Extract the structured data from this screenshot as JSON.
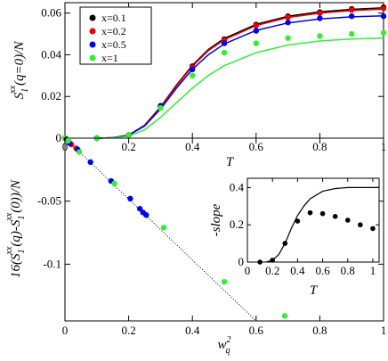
{
  "chart_data": [
    {
      "type": "line",
      "xlabel": "T",
      "ylabel": "S_1^{xx}(q=0)/N",
      "xlim": [
        0,
        1
      ],
      "ylim": [
        0,
        0.065
      ],
      "xticks": [
        "0",
        "0.2",
        "0.4",
        "0.6",
        "0.8",
        "1"
      ],
      "yticks": [
        "0",
        "0.02",
        "0.04",
        "0.06"
      ],
      "legend": {
        "placement": "top-left",
        "entries": [
          "x=0.1",
          "x=0.2",
          "x=0.5",
          "x=1"
        ]
      },
      "series": [
        {
          "name": "x=0.1",
          "color": "#000000",
          "points": {
            "x": [
              0.0,
              0.1,
              0.2,
              0.3,
              0.4,
              0.5,
              0.6,
              0.7,
              0.8,
              0.9,
              1.0
            ],
            "y": [
              0.0,
              0.0,
              0.0015,
              0.0155,
              0.0345,
              0.0475,
              0.0545,
              0.0585,
              0.0605,
              0.062,
              0.0628
            ]
          },
          "curve": {
            "x": [
              0.1,
              0.15,
              0.2,
              0.25,
              0.3,
              0.35,
              0.4,
              0.45,
              0.5,
              0.6,
              0.7,
              0.8,
              0.9,
              1.0
            ],
            "y": [
              0.0,
              0.0002,
              0.0015,
              0.0062,
              0.015,
              0.0255,
              0.035,
              0.0425,
              0.0478,
              0.0546,
              0.0585,
              0.0606,
              0.0618,
              0.0625
            ]
          }
        },
        {
          "name": "x=0.2",
          "color": "#ee0000",
          "points": {
            "x": [
              0.0,
              0.1,
              0.2,
              0.3,
              0.4,
              0.5,
              0.6,
              0.7,
              0.8,
              0.9,
              1.0
            ],
            "y": [
              0.0,
              0.0,
              0.0015,
              0.015,
              0.034,
              0.047,
              0.054,
              0.058,
              0.06,
              0.0615,
              0.0622
            ]
          },
          "curve": {
            "x": [
              0.1,
              0.15,
              0.2,
              0.25,
              0.3,
              0.35,
              0.4,
              0.45,
              0.5,
              0.6,
              0.7,
              0.8,
              0.9,
              1.0
            ],
            "y": [
              0.0,
              0.0002,
              0.0015,
              0.006,
              0.0146,
              0.025,
              0.0345,
              0.042,
              0.0472,
              0.054,
              0.0579,
              0.06,
              0.0612,
              0.0619
            ]
          }
        },
        {
          "name": "x=0.5",
          "color": "#0000ee",
          "points": {
            "x": [
              0.0,
              0.1,
              0.2,
              0.3,
              0.4,
              0.5,
              0.6,
              0.7,
              0.8,
              0.9,
              1.0
            ],
            "y": [
              0.0,
              0.0,
              0.0015,
              0.015,
              0.033,
              0.0455,
              0.0515,
              0.0555,
              0.0575,
              0.0585,
              0.0585
            ]
          },
          "curve": {
            "x": [
              0.1,
              0.15,
              0.2,
              0.25,
              0.3,
              0.35,
              0.4,
              0.45,
              0.5,
              0.6,
              0.7,
              0.8,
              0.9,
              1.0
            ],
            "y": [
              0.0,
              0.0002,
              0.0014,
              0.0058,
              0.014,
              0.024,
              0.033,
              0.04,
              0.0452,
              0.0517,
              0.0553,
              0.0572,
              0.0582,
              0.0587
            ]
          }
        },
        {
          "name": "x=1",
          "color": "#33ee33",
          "points": {
            "x": [
              0.0,
              0.1,
              0.2,
              0.3,
              0.4,
              0.5,
              0.6,
              0.7,
              0.8,
              0.9,
              1.0
            ],
            "y": [
              0.0,
              0.0,
              0.0015,
              0.0145,
              0.03,
              0.041,
              0.0455,
              0.048,
              0.049,
              0.05,
              0.0505
            ]
          },
          "curve": {
            "x": [
              0.1,
              0.15,
              0.2,
              0.25,
              0.3,
              0.35,
              0.4,
              0.45,
              0.5,
              0.6,
              0.7,
              0.8,
              0.9,
              1.0
            ],
            "y": [
              0.0,
              0.0001,
              0.001,
              0.004,
              0.01,
              0.017,
              0.024,
              0.03,
              0.0348,
              0.041,
              0.0447,
              0.0466,
              0.0476,
              0.048
            ]
          }
        }
      ]
    },
    {
      "type": "scatter",
      "xlabel": "w_q^2",
      "ylabel": "16(S_1^{xx}(q)-S_1^{xx}(0))/N",
      "xlim": [
        0,
        1
      ],
      "ylim": [
        -0.145,
        0
      ],
      "xticks": [
        "0",
        "0.2",
        "0.4",
        "0.6",
        "0.8",
        "1"
      ],
      "yticks": [
        "-0.05",
        "-0.1"
      ],
      "reference_line": {
        "style": "dotted",
        "x": [
          0,
          0.6
        ],
        "y": [
          0,
          -0.145
        ]
      },
      "series": [
        {
          "name": "x=0.1",
          "color": "#000000",
          "x": [
            0.005,
            0.01
          ],
          "y": [
            -0.001,
            -0.002
          ]
        },
        {
          "name": "x=0.2",
          "color": "#ee0000",
          "x": [
            0.02,
            0.035
          ],
          "y": [
            -0.005,
            -0.008
          ]
        },
        {
          "name": "x=0.5",
          "color": "#0000ee",
          "x": [
            0.015,
            0.04,
            0.08,
            0.145,
            0.205,
            0.235,
            0.245,
            0.255
          ],
          "y": [
            -0.004,
            -0.009,
            -0.019,
            -0.034,
            -0.048,
            -0.056,
            -0.059,
            -0.061
          ]
        },
        {
          "name": "x=1",
          "color": "#33ee33",
          "x": [
            0.01,
            0.045,
            0.155,
            0.31,
            0.5,
            0.69
          ],
          "y": [
            -0.002,
            -0.011,
            -0.036,
            -0.071,
            -0.114,
            -0.141
          ]
        }
      ]
    },
    {
      "type": "line",
      "xlabel": "T",
      "ylabel": "-slope",
      "xlim": [
        0,
        1.05
      ],
      "ylim": [
        0,
        0.45
      ],
      "xticks": [
        "0",
        "0.2",
        "0.4",
        "0.6",
        "0.8",
        "1"
      ],
      "yticks": [
        "0",
        "0.2",
        "0.4"
      ],
      "points": {
        "x": [
          0.1,
          0.2,
          0.3,
          0.4,
          0.5,
          0.6,
          0.7,
          0.8,
          0.9,
          1.0
        ],
        "y": [
          0.0,
          0.01,
          0.1,
          0.22,
          0.265,
          0.26,
          0.245,
          0.225,
          0.2,
          0.18
        ]
      },
      "curve": {
        "x": [
          0.15,
          0.2,
          0.25,
          0.3,
          0.35,
          0.4,
          0.45,
          0.5,
          0.6,
          0.7,
          0.8,
          0.9,
          1.0,
          1.05
        ],
        "y": [
          0.0,
          0.01,
          0.04,
          0.1,
          0.18,
          0.25,
          0.3,
          0.34,
          0.38,
          0.395,
          0.4,
          0.4,
          0.4,
          0.4
        ]
      }
    }
  ]
}
